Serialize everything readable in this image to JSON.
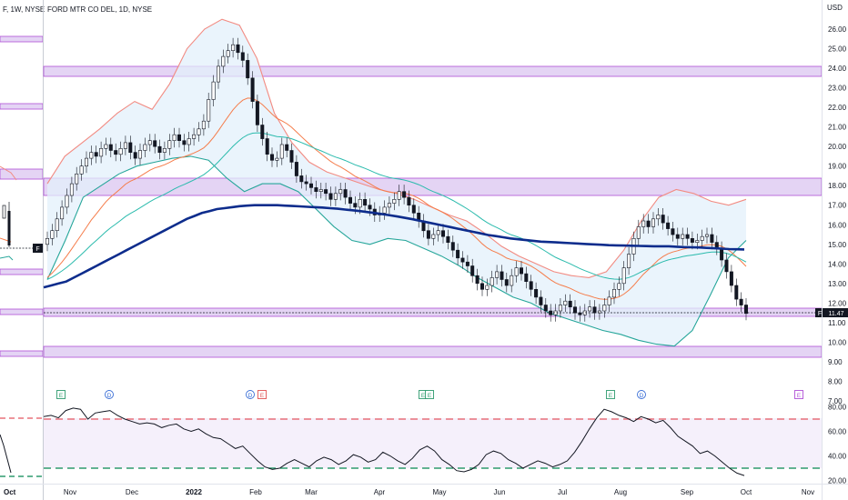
{
  "left_panel": {
    "title": "F, 1W, NYSE",
    "tag": "F",
    "x_tick": "Oct"
  },
  "main_title": "FORD MTR CO DEL, 1D, NYSE",
  "price_axis": {
    "currency_label": "USD",
    "ticks": [
      "26.00",
      "25.00",
      "24.00",
      "23.00",
      "22.00",
      "21.00",
      "20.00",
      "19.00",
      "18.00",
      "17.00",
      "16.00",
      "15.00",
      "14.00",
      "13.00",
      "12.00",
      "11.00",
      "10.00",
      "9.00",
      "8.00",
      "7.00"
    ]
  },
  "rsi_axis": {
    "ticks": [
      "80.00",
      "60.00",
      "40.00",
      "20.00"
    ]
  },
  "x_axis": {
    "ticks": [
      "Nov",
      "Dec",
      "2022",
      "Feb",
      "Mar",
      "Apr",
      "May",
      "Jun",
      "Jul",
      "Aug",
      "Sep",
      "Oct",
      "Nov"
    ]
  },
  "price_tag": {
    "symbol": "F",
    "value": "11.47"
  },
  "event_markers": [
    "E",
    "D",
    "D",
    "E",
    "E",
    "E",
    "E",
    "D",
    "E"
  ],
  "colors": {
    "bollinger_upper": "#f28b82",
    "bollinger_lower": "#26a69a",
    "ema_orange": "#f57c4a",
    "ema_teal": "#2bbbad",
    "sma_blue": "#0d2c8c",
    "zone_fill": "#e4d4f4",
    "zone_stroke": "#b04fd6",
    "rsi_upper": "#e8707a",
    "rsi_lower": "#2e9b6e"
  },
  "chart_data": [
    {
      "type": "candlestick",
      "title": "FORD MTR CO DEL, 1D, NYSE",
      "ylim": [
        7,
        26.7
      ],
      "x_ticks": [
        "Nov",
        "Dec",
        "2022",
        "Feb",
        "Mar",
        "Apr",
        "May",
        "Jun",
        "Jul",
        "Aug",
        "Sep",
        "Oct",
        "Nov"
      ],
      "close": [
        15.3,
        15.7,
        16.3,
        16.9,
        17.5,
        18.1,
        18.6,
        19.0,
        19.4,
        19.7,
        19.5,
        19.9,
        20.1,
        19.8,
        19.6,
        19.9,
        20.2,
        19.7,
        19.4,
        19.8,
        20.1,
        20.3,
        20.0,
        19.7,
        19.9,
        20.3,
        20.6,
        20.3,
        20.1,
        20.4,
        20.6,
        20.9,
        21.3,
        22.4,
        23.3,
        24.1,
        24.6,
        24.9,
        25.2,
        24.8,
        24.4,
        23.5,
        22.3,
        21.1,
        20.4,
        19.6,
        19.3,
        19.4,
        20.1,
        19.8,
        19.2,
        18.5,
        18.2,
        18.1,
        17.9,
        17.7,
        17.8,
        17.6,
        17.3,
        17.6,
        17.8,
        17.4,
        17.1,
        16.9,
        17.3,
        17.0,
        16.8,
        16.5,
        16.6,
        16.9,
        17.1,
        17.3,
        17.7,
        17.4,
        17.0,
        16.6,
        16.2,
        15.7,
        15.3,
        15.5,
        15.7,
        15.4,
        15.1,
        14.7,
        14.3,
        14.1,
        13.9,
        13.4,
        13.0,
        12.7,
        12.9,
        13.3,
        13.6,
        13.2,
        12.9,
        13.4,
        13.8,
        13.5,
        13.1,
        12.7,
        12.3,
        11.9,
        11.6,
        11.4,
        11.6,
        11.9,
        12.1,
        11.8,
        11.5,
        11.4,
        11.6,
        11.8,
        11.5,
        11.6,
        11.9,
        12.3,
        12.7,
        13.0,
        13.8,
        14.5,
        15.3,
        15.9,
        16.2,
        15.9,
        16.3,
        16.5,
        16.1,
        15.8,
        15.5,
        15.3,
        15.5,
        15.3,
        15.1,
        15.2,
        15.4,
        15.5,
        15.1,
        14.8,
        14.2,
        13.6,
        12.9,
        12.2,
        11.9,
        11.47
      ],
      "indicators": [
        {
          "name": "SMA",
          "values": [
            12.8,
            12.9,
            13.0,
            13.1,
            13.3,
            13.5,
            13.7,
            13.9,
            14.1,
            14.3,
            14.5,
            14.7,
            14.9,
            15.1,
            15.3,
            15.5,
            15.7,
            15.9,
            16.1,
            16.3,
            16.45,
            16.6,
            16.7,
            16.8,
            16.85,
            16.9,
            16.95,
            16.98,
            17.0,
            17.0,
            17.0,
            17.0,
            16.98,
            16.96,
            16.94,
            16.92,
            16.9,
            16.88,
            16.85,
            16.82,
            16.78,
            16.74,
            16.7,
            16.65,
            16.6,
            16.54,
            16.48,
            16.42,
            16.35,
            16.28,
            16.2,
            16.12,
            16.04,
            15.96,
            15.88,
            15.8,
            15.72,
            15.64,
            15.56,
            15.48,
            15.42,
            15.36,
            15.3,
            15.26,
            15.22,
            15.18,
            15.14,
            15.12,
            15.1,
            15.08,
            15.06,
            15.04,
            15.02,
            15.0,
            14.98,
            14.96,
            14.95,
            14.94,
            14.93,
            14.92,
            14.91,
            14.9,
            14.9,
            14.9,
            14.88,
            14.86,
            14.85,
            14.84,
            14.82,
            14.8,
            14.78,
            14.76,
            14.75,
            14.74
          ]
        },
        {
          "name": "Bollinger upper",
          "values": [
            18.1,
            19.5,
            20.2,
            20.9,
            21.7,
            22.3,
            21.9,
            23.2,
            25.0,
            26.0,
            26.5,
            26.2,
            24.5,
            21.7,
            20.2,
            19.2,
            18.7,
            18.4,
            18.1,
            17.8,
            17.6,
            17.3,
            16.9,
            16.5,
            16.2,
            15.6,
            14.9,
            14.4,
            14.0,
            13.6,
            13.4,
            13.3,
            13.6,
            14.7,
            16.2,
            17.4,
            17.8,
            17.6,
            17.2,
            17.0,
            17.3
          ]
        },
        {
          "name": "Bollinger lower",
          "values": [
            13.2,
            15.2,
            17.4,
            18.0,
            18.6,
            19.0,
            19.2,
            19.4,
            19.5,
            19.3,
            18.4,
            17.7,
            18.1,
            18.1,
            17.7,
            16.8,
            15.9,
            15.2,
            15.0,
            15.3,
            15.2,
            14.8,
            14.4,
            13.9,
            13.3,
            12.8,
            12.3,
            12.0,
            11.5,
            11.2,
            10.9,
            10.6,
            10.4,
            10.1,
            9.9,
            9.8,
            10.6,
            12.4,
            14.3,
            15.2
          ]
        }
      ]
    },
    {
      "type": "line",
      "name": "RSI",
      "ylim": [
        15,
        85
      ],
      "reference_lines": [
        70,
        30
      ],
      "values": [
        72,
        73,
        71,
        77,
        79,
        78,
        70,
        75,
        76,
        77,
        73,
        70,
        68,
        66,
        67,
        66,
        63,
        65,
        66,
        62,
        60,
        62,
        58,
        55,
        54,
        50,
        46,
        48,
        42,
        36,
        31,
        29,
        30,
        34,
        37,
        34,
        31,
        36,
        39,
        37,
        33,
        36,
        41,
        39,
        35,
        37,
        43,
        40,
        36,
        33,
        38,
        45,
        48,
        44,
        37,
        33,
        28,
        27,
        29,
        33,
        41,
        44,
        42,
        37,
        34,
        30,
        33,
        36,
        34,
        31,
        33,
        36,
        43,
        52,
        62,
        71,
        78,
        76,
        73,
        71,
        68,
        72,
        70,
        67,
        69,
        63,
        56,
        52,
        48,
        42,
        44,
        40,
        35,
        30,
        26,
        24
      ]
    }
  ]
}
